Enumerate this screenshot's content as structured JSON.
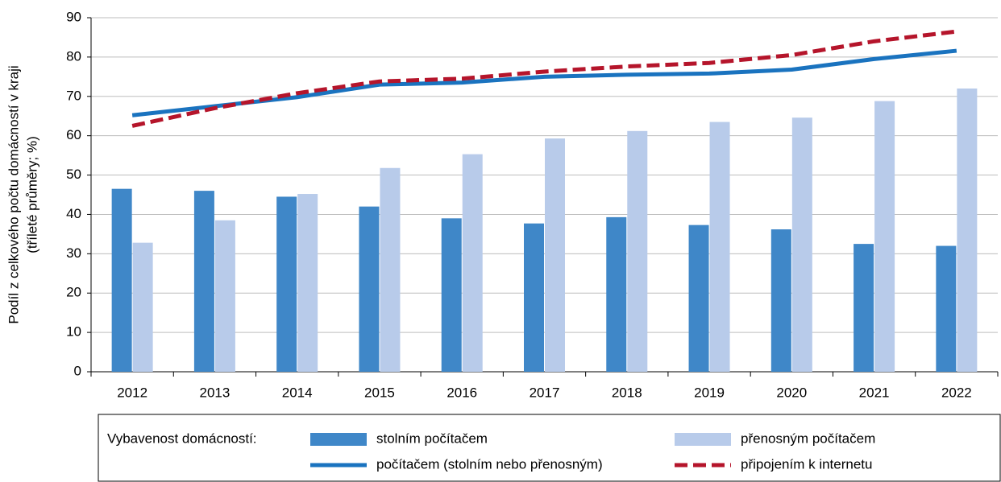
{
  "chart_data": {
    "type": "bar_line",
    "ylabel": [
      "Podíl z celkového počtu domácností v kraji",
      "(tříleté průměry; %)"
    ],
    "legend_title": "Vybavenost domácností:",
    "categories": [
      "2012",
      "2013",
      "2014",
      "2015",
      "2016",
      "2017",
      "2018",
      "2019",
      "2020",
      "2021",
      "2022"
    ],
    "series": [
      {
        "name": "stolním počítačem",
        "type": "bar",
        "color": "#3f87c8",
        "values": [
          46.5,
          46,
          44.5,
          42,
          39,
          37.7,
          39.3,
          37.3,
          36.2,
          32.5,
          32
        ]
      },
      {
        "name": "přenosným počítačem",
        "type": "bar",
        "color": "#b8cbea",
        "values": [
          32.8,
          38.5,
          45.2,
          51.8,
          55.3,
          59.3,
          61.2,
          63.5,
          64.6,
          68.8,
          72
        ]
      },
      {
        "name": "počítačem (stolním nebo přenosným)",
        "type": "line",
        "color": "#1a73bf",
        "values": [
          65.2,
          67.5,
          69.8,
          73,
          73.5,
          75,
          75.5,
          75.8,
          76.8,
          79.5,
          81.6
        ]
      },
      {
        "name": "připojením k internetu",
        "type": "line",
        "dashed": true,
        "color": "#b5152b",
        "values": [
          62.5,
          67,
          70.8,
          73.8,
          74.5,
          76.3,
          77.6,
          78.5,
          80.5,
          84,
          86.5
        ]
      }
    ],
    "ylim": [
      0,
      90
    ],
    "yticks": [
      0,
      10,
      20,
      30,
      40,
      50,
      60,
      70,
      80,
      90
    ],
    "grid": true
  }
}
